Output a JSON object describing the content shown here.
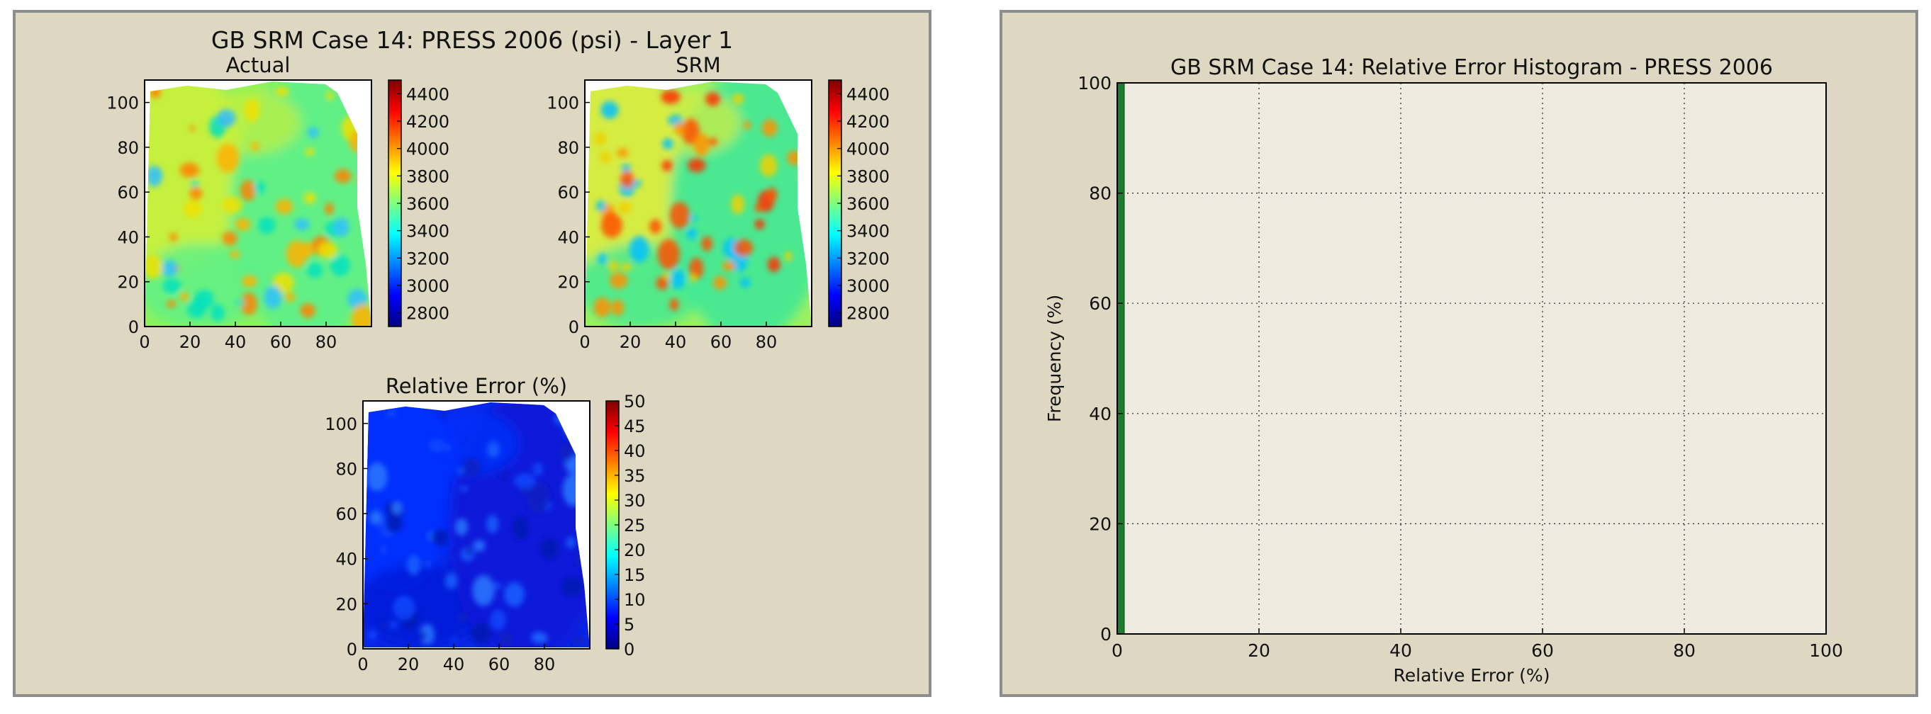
{
  "colors": {
    "panel_bg": "#ded8c2",
    "panel_border": "#8d8d8d",
    "plot_bg": "#efebe0",
    "histogram_bar": "#1e7d2c",
    "jet_colormap": [
      "#00007f",
      "#0000ff",
      "#007fff",
      "#00ffff",
      "#7fff7f",
      "#ffff00",
      "#ff7f00",
      "#ff0000",
      "#7f0000"
    ]
  },
  "left_panel": {
    "suptitle": "GB SRM Case 14: PRESS 2006 (psi) - Layer 1",
    "maps": [
      {
        "id": "actual",
        "title": "Actual",
        "xticks": [
          "0",
          "20",
          "40",
          "60",
          "80"
        ],
        "yticks": [
          "0",
          "20",
          "40",
          "60",
          "80",
          "100"
        ],
        "colorbar_ticks": [
          "2800",
          "3000",
          "3200",
          "3400",
          "3600",
          "3800",
          "4000",
          "4200",
          "4400"
        ]
      },
      {
        "id": "srm",
        "title": "SRM",
        "xticks": [
          "0",
          "20",
          "40",
          "60",
          "80"
        ],
        "yticks": [
          "0",
          "20",
          "40",
          "60",
          "80",
          "100"
        ],
        "colorbar_ticks": [
          "2800",
          "3000",
          "3200",
          "3400",
          "3600",
          "3800",
          "4000",
          "4200",
          "4400"
        ]
      },
      {
        "id": "error",
        "title": "Relative Error (%)",
        "xticks": [
          "0",
          "20",
          "40",
          "60",
          "80"
        ],
        "yticks": [
          "0",
          "20",
          "40",
          "60",
          "80",
          "100"
        ],
        "colorbar_ticks": [
          "0",
          "5",
          "10",
          "15",
          "20",
          "25",
          "30",
          "35",
          "40",
          "45",
          "50"
        ]
      }
    ]
  },
  "chart_data": {
    "type": "bar",
    "title": "GB SRM Case 14: Relative Error Histogram - PRESS 2006",
    "xlabel": "Relative Error (%)",
    "ylabel": "Frequency (%)",
    "xlim": [
      0,
      100
    ],
    "ylim": [
      0,
      100
    ],
    "xticks": [
      0,
      20,
      40,
      60,
      80,
      100
    ],
    "yticks": [
      0,
      20,
      40,
      60,
      80,
      100
    ],
    "grid": true,
    "bins": [
      {
        "x0": 0,
        "x1": 1,
        "value": 100
      }
    ]
  }
}
